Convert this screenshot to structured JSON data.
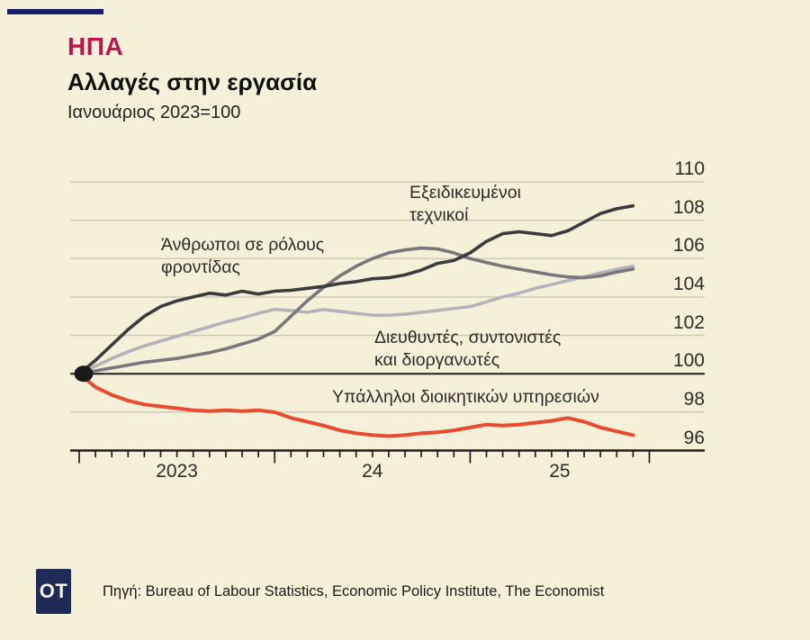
{
  "header": {
    "tag": "ΗΠΑ",
    "title": "Αλλαγές στην εργασία",
    "subtitle": "Ιανουάριος 2023=100"
  },
  "chart_data": {
    "type": "line",
    "title": "Αλλαγές στην εργασία",
    "index_note": "Ιανουάριος 2023=100",
    "x_unit": "month",
    "x_start": "2023-01",
    "x_end": "2025-11",
    "x_year_labels": [
      "2023",
      "24",
      "25"
    ],
    "y_ticks": [
      96,
      98,
      100,
      102,
      104,
      106,
      108,
      110
    ],
    "ylim": [
      96,
      110.5
    ],
    "grid": "horizontal",
    "baseline_value": 100,
    "legend_position": "labels-on-chart",
    "series": [
      {
        "name": "Διευθυντές, συντονιστές και διοργανωτές",
        "color": "#b3b3bb",
        "values": [
          100,
          100.4,
          100.8,
          101.15,
          101.45,
          101.7,
          101.95,
          102.2,
          102.45,
          102.7,
          102.9,
          103.15,
          103.35,
          103.3,
          103.2,
          103.35,
          103.25,
          103.15,
          103.05,
          103.05,
          103.1,
          103.2,
          103.3,
          103.4,
          103.5,
          103.75,
          104.0,
          104.2,
          104.45,
          104.65,
          104.85,
          105.05,
          105.25,
          105.45,
          105.6
        ]
      },
      {
        "name": "Άνθρωποι σε ρόλους φροντίδας",
        "color": "#77777d",
        "values": [
          100,
          100.15,
          100.3,
          100.45,
          100.6,
          100.7,
          100.8,
          100.95,
          101.1,
          101.3,
          101.55,
          101.8,
          102.2,
          103.0,
          103.8,
          104.5,
          105.1,
          105.6,
          106.0,
          106.3,
          106.45,
          106.55,
          106.5,
          106.3,
          106.0,
          105.8,
          105.6,
          105.45,
          105.3,
          105.15,
          105.05,
          105.0,
          105.1,
          105.3,
          105.45
        ]
      },
      {
        "name": "Εξειδικευμένοι τεχνικοί",
        "color": "#3b3b40",
        "values": [
          100,
          100.7,
          101.5,
          102.3,
          103.0,
          103.5,
          103.8,
          104.0,
          104.2,
          104.1,
          104.3,
          104.15,
          104.3,
          104.35,
          104.45,
          104.55,
          104.7,
          104.8,
          104.95,
          105.0,
          105.15,
          105.4,
          105.75,
          105.9,
          106.3,
          106.9,
          107.3,
          107.4,
          107.3,
          107.2,
          107.45,
          107.9,
          108.35,
          108.6,
          108.75
        ]
      },
      {
        "name": "Υπάλληλοι διοικητικών υπηρεσιών",
        "color": "#ea4a30",
        "values": [
          100,
          99.3,
          98.9,
          98.6,
          98.4,
          98.3,
          98.2,
          98.1,
          98.05,
          98.1,
          98.05,
          98.1,
          98.0,
          97.7,
          97.5,
          97.3,
          97.05,
          96.9,
          96.8,
          96.75,
          96.8,
          96.9,
          96.95,
          97.05,
          97.2,
          97.35,
          97.3,
          97.35,
          97.45,
          97.55,
          97.7,
          97.5,
          97.2,
          97.0,
          96.8
        ]
      }
    ]
  },
  "annotations": {
    "carers_line1": "Άνθρωποι σε ρόλους",
    "carers_line2": "φροντίδας",
    "tech_line1": "Εξειδικευμένοι",
    "tech_line2": "τεχνικοί",
    "managers_line1": "Διευθυντές, συντονιστές",
    "managers_line2": "και διοργανωτές",
    "admin_line": "Υπάλληλοι διοικητικών υπηρεσιών"
  },
  "footer": {
    "logo": "OT",
    "source": "Πηγή: Bureau of Labour Statistics, Economic Policy Institute, The Economist"
  },
  "colors": {
    "background": "#f5f1d8",
    "accent_tag": "#c2124d",
    "navy": "#191d6c",
    "logo_navy": "#1f2a56",
    "grid": "#cbc7b3",
    "axis": "#1d1d1d"
  }
}
